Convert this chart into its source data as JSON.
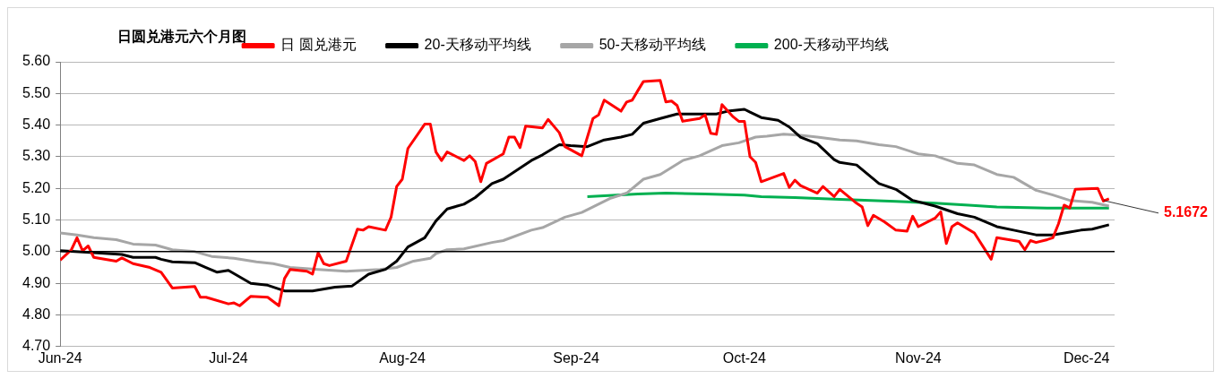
{
  "chart_data": {
    "type": "line",
    "title": "日圆兑港元六个月图",
    "legend": "top",
    "grid": "y",
    "xlim": [
      "2024-06-01",
      "2024-12-06"
    ],
    "xticks": [
      {
        "value": "2024-06-01",
        "label": "Jun-24"
      },
      {
        "value": "2024-07-01",
        "label": "Jul-24"
      },
      {
        "value": "2024-08-01",
        "label": "Aug-24"
      },
      {
        "value": "2024-09-01",
        "label": "Sep-24"
      },
      {
        "value": "2024-10-01",
        "label": "Oct-24"
      },
      {
        "value": "2024-11-01",
        "label": "Nov-24"
      },
      {
        "value": "2024-12-01",
        "label": "Dec-24"
      }
    ],
    "ylim": [
      4.7,
      5.6
    ],
    "yticks": [
      {
        "value": 4.7,
        "label": "4.70"
      },
      {
        "value": 4.8,
        "label": "4.80"
      },
      {
        "value": 4.9,
        "label": "4.90"
      },
      {
        "value": 5.0,
        "label": "5.00"
      },
      {
        "value": 5.1,
        "label": "5.10"
      },
      {
        "value": 5.2,
        "label": "5.20"
      },
      {
        "value": 5.3,
        "label": "5.30"
      },
      {
        "value": 5.4,
        "label": "5.40"
      },
      {
        "value": 5.5,
        "label": "5.50"
      },
      {
        "value": 5.6,
        "label": "5.60"
      }
    ],
    "ref_lines": [
      {
        "axis": "y",
        "value": 5.0,
        "color": "#000000"
      }
    ],
    "annotations": [
      {
        "text": "5.1672",
        "x": "2024-12-05",
        "y": 5.1672
      }
    ],
    "series": [
      {
        "name": "日 圆兑港元",
        "color": "#ff0000",
        "x": [
          "2024-06-01",
          "2024-06-03",
          "2024-06-04",
          "2024-06-05",
          "2024-06-06",
          "2024-06-07",
          "2024-06-11",
          "2024-06-12",
          "2024-06-14",
          "2024-06-17",
          "2024-06-19",
          "2024-06-21",
          "2024-06-25",
          "2024-06-26",
          "2024-06-27",
          "2024-07-01",
          "2024-07-02",
          "2024-07-03",
          "2024-07-05",
          "2024-07-08",
          "2024-07-10",
          "2024-07-11",
          "2024-07-12",
          "2024-07-15",
          "2024-07-16",
          "2024-07-17",
          "2024-07-18",
          "2024-07-19",
          "2024-07-22",
          "2024-07-24",
          "2024-07-25",
          "2024-07-26",
          "2024-07-29",
          "2024-07-30",
          "2024-07-31",
          "2024-08-01",
          "2024-08-02",
          "2024-08-05",
          "2024-08-06",
          "2024-08-07",
          "2024-08-08",
          "2024-08-09",
          "2024-08-12",
          "2024-08-13",
          "2024-08-14",
          "2024-08-15",
          "2024-08-16",
          "2024-08-19",
          "2024-08-20",
          "2024-08-21",
          "2024-08-22",
          "2024-08-23",
          "2024-08-26",
          "2024-08-27",
          "2024-08-29",
          "2024-08-30",
          "2024-09-02",
          "2024-09-04",
          "2024-09-05",
          "2024-09-06",
          "2024-09-09",
          "2024-09-10",
          "2024-09-11",
          "2024-09-12",
          "2024-09-13",
          "2024-09-16",
          "2024-09-17",
          "2024-09-18",
          "2024-09-19",
          "2024-09-20",
          "2024-09-23",
          "2024-09-24",
          "2024-09-25",
          "2024-09-26",
          "2024-09-27",
          "2024-09-29",
          "2024-09-30",
          "2024-10-01",
          "2024-10-02",
          "2024-10-03",
          "2024-10-04",
          "2024-10-08",
          "2024-10-09",
          "2024-10-10",
          "2024-10-11",
          "2024-10-14",
          "2024-10-15",
          "2024-10-17",
          "2024-10-18",
          "2024-10-21",
          "2024-10-22",
          "2024-10-23",
          "2024-10-24",
          "2024-10-26",
          "2024-10-28",
          "2024-10-30",
          "2024-10-31",
          "2024-11-01",
          "2024-11-04",
          "2024-11-05",
          "2024-11-06",
          "2024-11-07",
          "2024-11-08",
          "2024-11-11",
          "2024-11-14",
          "2024-11-15",
          "2024-11-19",
          "2024-11-20",
          "2024-11-21",
          "2024-11-22",
          "2024-11-24",
          "2024-11-25",
          "2024-11-26",
          "2024-11-27",
          "2024-11-28",
          "2024-11-29",
          "2024-12-03",
          "2024-12-04",
          "2024-12-05"
        ],
        "values": [
          4.973,
          5.006,
          5.044,
          5.003,
          5.018,
          4.982,
          4.97,
          4.98,
          4.962,
          4.95,
          4.935,
          4.885,
          4.89,
          4.856,
          4.856,
          4.835,
          4.838,
          4.829,
          4.859,
          4.856,
          4.829,
          4.915,
          4.944,
          4.938,
          4.929,
          4.997,
          4.962,
          4.956,
          4.97,
          5.071,
          5.068,
          5.079,
          5.068,
          5.109,
          5.206,
          5.229,
          5.326,
          5.403,
          5.403,
          5.315,
          5.288,
          5.315,
          5.288,
          5.303,
          5.285,
          5.221,
          5.279,
          5.309,
          5.362,
          5.362,
          5.329,
          5.397,
          5.391,
          5.418,
          5.376,
          5.332,
          5.303,
          5.421,
          5.432,
          5.479,
          5.444,
          5.473,
          5.479,
          5.509,
          5.538,
          5.541,
          5.473,
          5.476,
          5.462,
          5.412,
          5.421,
          5.432,
          5.374,
          5.371,
          5.465,
          5.426,
          5.412,
          5.412,
          5.3,
          5.282,
          5.221,
          5.247,
          5.203,
          5.226,
          5.209,
          5.185,
          5.206,
          5.174,
          5.197,
          5.153,
          5.141,
          5.082,
          5.115,
          5.094,
          5.068,
          5.065,
          5.112,
          5.079,
          5.106,
          5.126,
          5.026,
          5.079,
          5.091,
          5.059,
          4.976,
          5.044,
          5.032,
          5.006,
          5.035,
          5.029,
          5.038,
          5.044,
          5.088,
          5.147,
          5.138,
          5.197,
          5.2,
          5.16,
          5.1672
        ]
      },
      {
        "name": "20-天移动平均线",
        "color": "#000000",
        "x": [
          "2024-06-01",
          "2024-06-07",
          "2024-06-12",
          "2024-06-14",
          "2024-06-18",
          "2024-06-19",
          "2024-06-21",
          "2024-06-25",
          "2024-06-27",
          "2024-06-29",
          "2024-07-01",
          "2024-07-05",
          "2024-07-08",
          "2024-07-11",
          "2024-07-16",
          "2024-07-20",
          "2024-07-23",
          "2024-07-26",
          "2024-07-29",
          "2024-07-31",
          "2024-08-02",
          "2024-08-05",
          "2024-08-07",
          "2024-08-09",
          "2024-08-12",
          "2024-08-14",
          "2024-08-17",
          "2024-08-19",
          "2024-08-24",
          "2024-08-26",
          "2024-08-29",
          "2024-08-31",
          "2024-09-03",
          "2024-09-06",
          "2024-09-09",
          "2024-09-11",
          "2024-09-13",
          "2024-09-16",
          "2024-09-19",
          "2024-09-26",
          "2024-09-28",
          "2024-10-01",
          "2024-10-02",
          "2024-10-04",
          "2024-10-07",
          "2024-10-09",
          "2024-10-11",
          "2024-10-14",
          "2024-10-17",
          "2024-10-18",
          "2024-10-21",
          "2024-10-25",
          "2024-10-28",
          "2024-10-31",
          "2024-11-04",
          "2024-11-08",
          "2024-11-11",
          "2024-11-15",
          "2024-11-18",
          "2024-11-22",
          "2024-11-25",
          "2024-11-28",
          "2024-11-30",
          "2024-12-02",
          "2024-12-05"
        ],
        "values": [
          5.003,
          4.997,
          4.991,
          4.982,
          4.982,
          4.976,
          4.968,
          4.965,
          4.95,
          4.935,
          4.941,
          4.9,
          4.894,
          4.876,
          4.876,
          4.888,
          4.891,
          4.929,
          4.944,
          4.97,
          5.015,
          5.044,
          5.097,
          5.135,
          5.15,
          5.171,
          5.215,
          5.229,
          5.288,
          5.306,
          5.338,
          5.335,
          5.332,
          5.353,
          5.362,
          5.371,
          5.406,
          5.421,
          5.435,
          5.435,
          5.444,
          5.45,
          5.441,
          5.424,
          5.415,
          5.394,
          5.362,
          5.341,
          5.291,
          5.282,
          5.274,
          5.215,
          5.197,
          5.162,
          5.144,
          5.12,
          5.109,
          5.079,
          5.068,
          5.053,
          5.053,
          5.062,
          5.068,
          5.071,
          5.085
        ]
      },
      {
        "name": "50-天移动平均线",
        "color": "#a6a6a6",
        "x": [
          "2024-06-01",
          "2024-06-04",
          "2024-06-07",
          "2024-06-11",
          "2024-06-14",
          "2024-06-18",
          "2024-06-21",
          "2024-06-25",
          "2024-06-28",
          "2024-07-02",
          "2024-07-06",
          "2024-07-09",
          "2024-07-12",
          "2024-07-17",
          "2024-07-22",
          "2024-07-28",
          "2024-07-31",
          "2024-08-03",
          "2024-08-06",
          "2024-08-07",
          "2024-08-09",
          "2024-08-12",
          "2024-08-17",
          "2024-08-19",
          "2024-08-24",
          "2024-08-26",
          "2024-08-30",
          "2024-09-02",
          "2024-09-07",
          "2024-09-10",
          "2024-09-13",
          "2024-09-16",
          "2024-09-20",
          "2024-09-23",
          "2024-09-27",
          "2024-09-30",
          "2024-10-03",
          "2024-10-05",
          "2024-10-08",
          "2024-10-11",
          "2024-10-14",
          "2024-10-18",
          "2024-10-21",
          "2024-10-25",
          "2024-10-28",
          "2024-11-01",
          "2024-11-04",
          "2024-11-08",
          "2024-11-11",
          "2024-11-15",
          "2024-11-18",
          "2024-11-22",
          "2024-11-25",
          "2024-11-28",
          "2024-12-02",
          "2024-12-05"
        ],
        "values": [
          5.059,
          5.053,
          5.044,
          5.038,
          5.024,
          5.021,
          5.006,
          5.0,
          4.985,
          4.979,
          4.968,
          4.962,
          4.95,
          4.944,
          4.938,
          4.944,
          4.95,
          4.97,
          4.979,
          4.994,
          5.006,
          5.009,
          5.029,
          5.035,
          5.068,
          5.076,
          5.109,
          5.124,
          5.168,
          5.185,
          5.229,
          5.244,
          5.288,
          5.303,
          5.335,
          5.344,
          5.362,
          5.365,
          5.371,
          5.368,
          5.362,
          5.353,
          5.35,
          5.338,
          5.332,
          5.309,
          5.303,
          5.279,
          5.274,
          5.244,
          5.235,
          5.194,
          5.179,
          5.162,
          5.156,
          5.144
        ]
      },
      {
        "name": "200-天移动平均线",
        "color": "#00b050",
        "x": [
          "2024-09-03",
          "2024-09-12",
          "2024-09-17",
          "2024-09-24",
          "2024-10-01",
          "2024-10-04",
          "2024-10-10",
          "2024-10-18",
          "2024-10-28",
          "2024-11-04",
          "2024-11-10",
          "2024-11-15",
          "2024-11-24",
          "2024-12-05"
        ],
        "values": [
          5.174,
          5.182,
          5.185,
          5.182,
          5.179,
          5.174,
          5.171,
          5.165,
          5.159,
          5.153,
          5.147,
          5.141,
          5.138,
          5.138
        ]
      }
    ]
  }
}
